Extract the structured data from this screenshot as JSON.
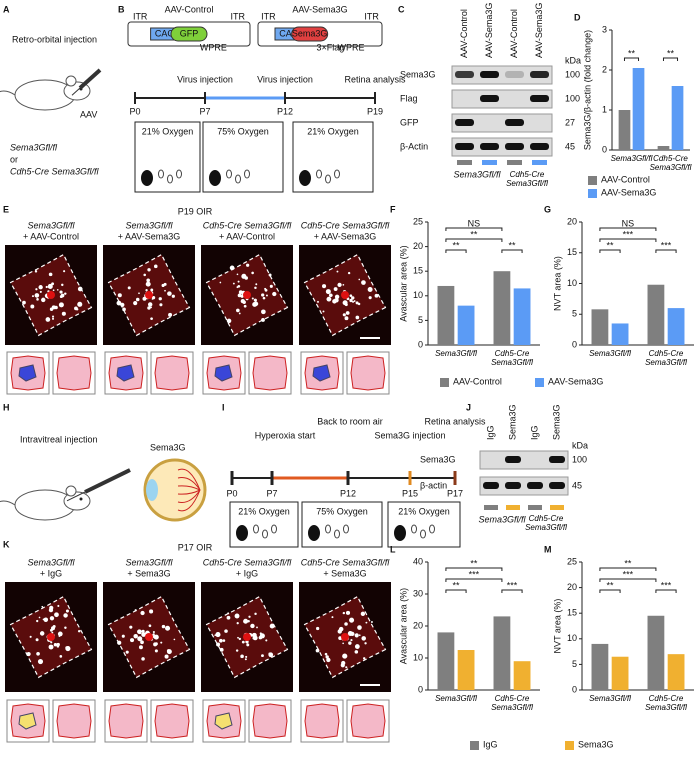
{
  "panels": {
    "A": {
      "letter": "A",
      "title": "Retro-orbital injection",
      "agent": "AAV",
      "genotype1": "Sema3Gfl/fl",
      "or": "or",
      "genotype2": "Cdh5-Cre Sema3Gfl/fl"
    },
    "B": {
      "letter": "B",
      "constructs": [
        {
          "name": "AAV-Control",
          "parts": [
            "ITR",
            "CAG",
            "GFP",
            "WPRE",
            "ITR"
          ]
        },
        {
          "name": "AAV-Sema3G",
          "parts": [
            "ITR",
            "CAG",
            "Sema3G",
            "3×Flag",
            "WPRE",
            "ITR"
          ]
        }
      ],
      "events": [
        "Virus injection",
        "Virus injection",
        "Retina analysis"
      ],
      "days": [
        "P0",
        "P7",
        "P12",
        "P19"
      ],
      "oxygen": [
        "21% Oxygen",
        "75% Oxygen",
        "21% Oxygen"
      ]
    },
    "C": {
      "letter": "C",
      "lanes": [
        "AAV-Control",
        "AAV-Sema3G",
        "AAV-Control",
        "AAV-Sema3G"
      ],
      "unit": "kDa",
      "rows": [
        {
          "name": "Sema3G",
          "kda": "100"
        },
        {
          "name": "Flag",
          "kda": "100"
        },
        {
          "name": "GFP",
          "kda": "27"
        },
        {
          "name": "β-Actin",
          "kda": "45"
        }
      ],
      "groups": [
        "Sema3Gfl/fl",
        "Cdh5-Cre Sema3Gfl/fl"
      ]
    },
    "E": {
      "letter": "E",
      "title": "P19 OIR",
      "columns": [
        [
          "Sema3Gfl/fl",
          "+ AAV-Control"
        ],
        [
          "Sema3Gfl/fl",
          "+ AAV-Sema3G"
        ],
        [
          "Cdh5-Cre Sema3Gfl/fl",
          "+ AAV-Control"
        ],
        [
          "Cdh5-Cre Sema3Gfl/fl",
          "+ AAV-Sema3G"
        ]
      ]
    },
    "H": {
      "letter": "H",
      "title": "Intravitreal injection",
      "agent": "Sema3G"
    },
    "I": {
      "letter": "I",
      "events": [
        "Hyperoxia start",
        "Back to room air",
        "Sema3G injection",
        "Retina analysis"
      ],
      "days": [
        "P0",
        "P7",
        "P12",
        "P15",
        "P17"
      ],
      "oxygen": [
        "21% Oxygen",
        "75% Oxygen",
        "21% Oxygen"
      ]
    },
    "J": {
      "letter": "J",
      "lanes": [
        "IgG",
        "Sema3G",
        "IgG",
        "Sema3G"
      ],
      "unit": "kDa",
      "rows": [
        {
          "name": "Sema3G",
          "kda": "100"
        },
        {
          "name": "β-actin",
          "kda": "45"
        }
      ],
      "groups": [
        "Sema3Gfl/fl",
        "Cdh5-Cre Sema3Gfl/fl"
      ]
    },
    "K": {
      "letter": "K",
      "title": "P17 OIR",
      "columns": [
        [
          "Sema3Gfl/fl",
          "+ IgG"
        ],
        [
          "Sema3Gfl/fl",
          "+ Sema3G"
        ],
        [
          "Cdh5-Cre Sema3Gfl/fl",
          "+ IgG"
        ],
        [
          "Cdh5-Cre Sema3Gfl/fl",
          "+ Sema3G"
        ]
      ]
    }
  },
  "chart_data": [
    {
      "type": "bar",
      "letter": "D",
      "y_label": "Sema3G/β-actin (fold change)",
      "categories": [
        "Sema3Gfl/fl",
        "Cdh5-Cre Sema3Gfl/fl"
      ],
      "series": [
        {
          "name": "AAV-Control",
          "color": "#7f7f7f",
          "values": [
            1.0,
            0.1
          ]
        },
        {
          "name": "AAV-Sema3G",
          "color": "#5b9bf5",
          "values": [
            2.05,
            1.6
          ]
        }
      ],
      "ylim": [
        0,
        3
      ],
      "yticks": [
        0,
        1,
        2,
        3
      ],
      "annotations": [
        "**",
        "**"
      ]
    },
    {
      "type": "bar",
      "letter": "F",
      "y_label": "Avascular area (%)",
      "categories": [
        "Sema3Gfl/fl",
        "Cdh5-Cre Sema3Gfl/fl"
      ],
      "series": [
        {
          "name": "AAV-Control",
          "color": "#7f7f7f",
          "values": [
            12,
            15
          ]
        },
        {
          "name": "AAV-Sema3G",
          "color": "#5b9bf5",
          "values": [
            8,
            11.5
          ]
        }
      ],
      "ylim": [
        0,
        25
      ],
      "yticks": [
        0,
        5,
        10,
        15,
        20,
        25
      ],
      "annotations": [
        "NS",
        "**",
        "**",
        "**"
      ]
    },
    {
      "type": "bar",
      "letter": "G",
      "y_label": "NVT area (%)",
      "categories": [
        "Sema3Gfl/fl",
        "Cdh5-Cre Sema3Gfl/fl"
      ],
      "series": [
        {
          "color": "#7f7f7f",
          "values": [
            5.8,
            9.8
          ]
        },
        {
          "color": "#5b9bf5",
          "values": [
            3.5,
            6
          ]
        }
      ],
      "ylim": [
        0,
        20
      ],
      "yticks": [
        0,
        5,
        10,
        15,
        20
      ],
      "annotations": [
        "NS",
        "***",
        "**",
        "***"
      ]
    },
    {
      "type": "bar",
      "letter": "L",
      "y_label": "Avascular area (%)",
      "categories": [
        "Sema3Gfl/fl",
        "Cdh5-Cre Sema3Gfl/fl"
      ],
      "series": [
        {
          "name": "IgG",
          "color": "#7f7f7f",
          "values": [
            18,
            23
          ]
        },
        {
          "name": "Sema3G",
          "color": "#f0b030",
          "values": [
            12.5,
            9
          ]
        }
      ],
      "ylim": [
        0,
        40
      ],
      "yticks": [
        0,
        10,
        20,
        30,
        40
      ],
      "annotations": [
        "**",
        "***",
        "**",
        "***"
      ]
    },
    {
      "type": "bar",
      "letter": "M",
      "y_label": "NVT area (%)",
      "categories": [
        "Sema3Gfl/fl",
        "Cdh5-Cre Sema3Gfl/fl"
      ],
      "series": [
        {
          "color": "#7f7f7f",
          "values": [
            9,
            14.5
          ]
        },
        {
          "color": "#f0b030",
          "values": [
            6.5,
            7
          ]
        }
      ],
      "ylim": [
        0,
        25
      ],
      "yticks": [
        0,
        5,
        10,
        15,
        20,
        25
      ],
      "annotations": [
        "**",
        "***",
        "**",
        "***"
      ]
    }
  ]
}
